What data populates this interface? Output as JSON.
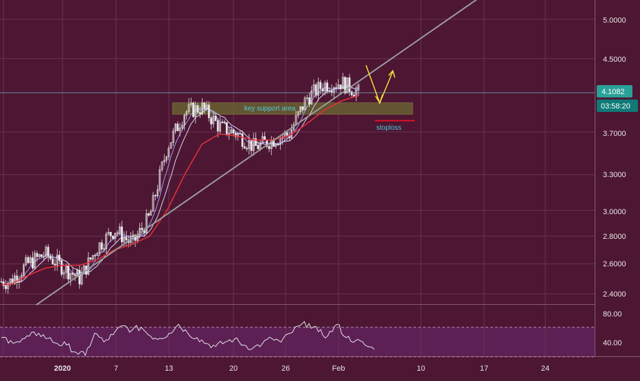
{
  "colors": {
    "background": "#4d1632",
    "grid": "#6a3450",
    "price_line": "#6e8fa3",
    "last_price_badge": "#2aa198",
    "countdown_badge": "#0f7a78",
    "candle_up": "#e9e9e9",
    "candle_down": "#e9e9e9",
    "ema_slow": "#e0303a",
    "ma_fast": "#9aa0ff",
    "ma_mid": "#d9d9ff",
    "trendline": "#9c9c9c",
    "support_zone": "#6b6a32",
    "support_label": "#4ec9d8",
    "stoploss_line": "#e0102a",
    "stoploss_label": "#4ec9d8",
    "arrows": "#f2e03a",
    "rsi_band": "#6b2a72",
    "rsi_line": "#e6e6e6",
    "axis_text": "#e8e8e8"
  },
  "price_axis": {
    "ticks": [
      "5.0000",
      "4.5000",
      "4.1082",
      "3.7000",
      "3.3000",
      "3.0000",
      "2.8000",
      "2.6000",
      "2.4000"
    ],
    "last_price": "4.1082",
    "countdown": "03:58:20"
  },
  "rsi_axis": {
    "ticks": [
      "80.00",
      "40.00"
    ]
  },
  "time_axis": {
    "ticks": [
      "2020",
      "7",
      "13",
      "20",
      "26",
      "Feb",
      "10",
      "17",
      "24"
    ]
  },
  "annotations": {
    "support_label": "key support area",
    "stoploss_label": "stoploss"
  },
  "chart_data": {
    "type": "line",
    "title": "",
    "xlabel": "",
    "ylabel": "",
    "y_scale": "log",
    "ylim": [
      2.33,
      5.4
    ],
    "x": [
      "2019-12-26",
      "2019-12-28",
      "2019-12-30",
      "2020-01-01",
      "2020-01-03",
      "2020-01-05",
      "2020-01-07",
      "2020-01-09",
      "2020-01-11",
      "2020-01-13",
      "2020-01-15",
      "2020-01-17",
      "2020-01-19",
      "2020-01-21",
      "2020-01-23",
      "2020-01-25",
      "2020-01-27",
      "2020-01-29",
      "2020-01-31",
      "2020-02-02",
      "2020-02-04"
    ],
    "series": [
      {
        "role": "close",
        "values": [
          2.48,
          2.6,
          2.67,
          2.58,
          2.5,
          2.72,
          2.85,
          2.74,
          2.95,
          3.55,
          3.9,
          3.95,
          3.75,
          3.68,
          3.55,
          3.62,
          3.68,
          4.05,
          4.2,
          4.22,
          4.1082
        ]
      },
      {
        "role": "ema_slow",
        "values": [
          2.46,
          2.52,
          2.57,
          2.59,
          2.59,
          2.63,
          2.7,
          2.74,
          2.8,
          3.0,
          3.3,
          3.58,
          3.68,
          3.66,
          3.62,
          3.62,
          3.66,
          3.78,
          3.92,
          4.02,
          4.08
        ]
      }
    ],
    "trendline": {
      "points": [
        [
          "2019-12-29",
          2.33
        ],
        [
          "2020-02-19",
          5.4
        ]
      ]
    },
    "support_zone": {
      "y_range": [
        3.8773,
        4.0
      ]
    },
    "stoploss": {
      "y": 3.8124
    },
    "rsi": {
      "ylim": [
        20,
        100
      ],
      "band": [
        30,
        70
      ],
      "values": [
        56,
        52,
        50,
        58,
        62,
        55,
        48,
        46,
        36,
        32,
        62,
        50,
        60,
        72,
        66,
        70,
        58,
        55,
        62,
        74,
        62,
        56,
        48,
        44,
        50,
        54,
        46,
        42,
        48,
        55,
        50,
        62,
        72,
        75,
        64,
        58,
        74,
        56,
        52,
        46,
        40
      ]
    }
  }
}
